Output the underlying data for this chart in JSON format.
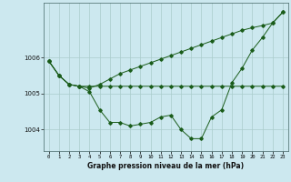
{
  "title": "Graphe pression niveau de la mer (hPa)",
  "bg_color": "#cce8ef",
  "grid_color": "#aacccc",
  "line_color": "#1a5c1a",
  "x_labels": [
    "0",
    "1",
    "2",
    "3",
    "4",
    "5",
    "6",
    "7",
    "8",
    "9",
    "10",
    "11",
    "12",
    "13",
    "14",
    "15",
    "16",
    "17",
    "18",
    "19",
    "20",
    "21",
    "22",
    "23"
  ],
  "ylim": [
    1003.4,
    1007.5
  ],
  "yticks": [
    1004,
    1005,
    1006
  ],
  "figsize": [
    3.2,
    2.0
  ],
  "dpi": 100,
  "series": [
    [
      1005.9,
      1005.5,
      1005.25,
      1005.2,
      1005.05,
      1004.55,
      1004.2,
      1004.2,
      1004.1,
      1004.15,
      1004.2,
      1004.35,
      1004.4,
      1004.0,
      1003.75,
      1003.75,
      1004.35,
      1004.55,
      1005.3,
      1005.7,
      1006.2,
      1006.55,
      1006.95,
      1007.25
    ],
    [
      1005.9,
      1005.5,
      1005.25,
      1005.2,
      1005.2,
      1005.2,
      1005.2,
      1005.2,
      1005.2,
      1005.2,
      1005.2,
      1005.2,
      1005.2,
      1005.2,
      1005.2,
      1005.2,
      1005.2,
      1005.2,
      1005.2,
      1005.2,
      1005.2,
      1005.2,
      1005.2,
      1005.2
    ],
    [
      1005.9,
      1005.5,
      1005.25,
      1005.2,
      1005.15,
      1005.25,
      1005.4,
      1005.55,
      1005.65,
      1005.75,
      1005.85,
      1005.95,
      1006.05,
      1006.15,
      1006.25,
      1006.35,
      1006.45,
      1006.55,
      1006.65,
      1006.75,
      1006.82,
      1006.88,
      1006.95,
      1007.25
    ]
  ]
}
